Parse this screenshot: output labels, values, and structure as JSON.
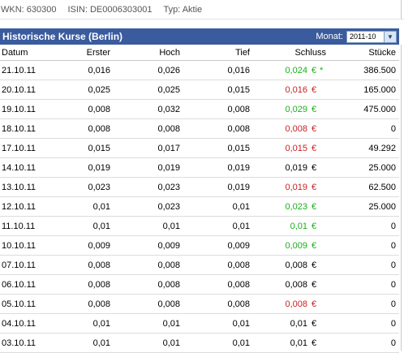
{
  "meta": {
    "wkn": "WKN: 630300",
    "isin": "ISIN: DE0006303001",
    "typ": "Typ: Aktie"
  },
  "header": {
    "title": "Historische Kurse (Berlin)",
    "month_label": "Monat:",
    "month_value": "2011-10",
    "dropdown_icon": "chevron-down-icon"
  },
  "colors": {
    "header_bg": "#3a5b9e",
    "up": "#19b019",
    "down": "#cc1f1f",
    "flat": "#000000"
  },
  "table": {
    "columns": [
      "Datum",
      "Erster",
      "Hoch",
      "Tief",
      "Schluss",
      "Stücke"
    ],
    "rows": [
      {
        "date": "21.10.11",
        "first": "0,016",
        "high": "0,026",
        "low": "0,016",
        "close": "0,024",
        "currency": "€",
        "trend": "up",
        "marker": "*",
        "volume": "386.500"
      },
      {
        "date": "20.10.11",
        "first": "0,025",
        "high": "0,025",
        "low": "0,015",
        "close": "0,016",
        "currency": "€",
        "trend": "down",
        "marker": "",
        "volume": "165.000"
      },
      {
        "date": "19.10.11",
        "first": "0,008",
        "high": "0,032",
        "low": "0,008",
        "close": "0,029",
        "currency": "€",
        "trend": "up",
        "marker": "",
        "volume": "475.000"
      },
      {
        "date": "18.10.11",
        "first": "0,008",
        "high": "0,008",
        "low": "0,008",
        "close": "0,008",
        "currency": "€",
        "trend": "down",
        "marker": "",
        "volume": "0"
      },
      {
        "date": "17.10.11",
        "first": "0,015",
        "high": "0,017",
        "low": "0,015",
        "close": "0,015",
        "currency": "€",
        "trend": "down",
        "marker": "",
        "volume": "49.292"
      },
      {
        "date": "14.10.11",
        "first": "0,019",
        "high": "0,019",
        "low": "0,019",
        "close": "0,019",
        "currency": "€",
        "trend": "flat",
        "marker": "",
        "volume": "25.000"
      },
      {
        "date": "13.10.11",
        "first": "0,023",
        "high": "0,023",
        "low": "0,019",
        "close": "0,019",
        "currency": "€",
        "trend": "down",
        "marker": "",
        "volume": "62.500"
      },
      {
        "date": "12.10.11",
        "first": "0,01",
        "high": "0,023",
        "low": "0,01",
        "close": "0,023",
        "currency": "€",
        "trend": "up",
        "marker": "",
        "volume": "25.000"
      },
      {
        "date": "11.10.11",
        "first": "0,01",
        "high": "0,01",
        "low": "0,01",
        "close": "0,01",
        "currency": "€",
        "trend": "up",
        "marker": "",
        "volume": "0"
      },
      {
        "date": "10.10.11",
        "first": "0,009",
        "high": "0,009",
        "low": "0,009",
        "close": "0,009",
        "currency": "€",
        "trend": "up",
        "marker": "",
        "volume": "0"
      },
      {
        "date": "07.10.11",
        "first": "0,008",
        "high": "0,008",
        "low": "0,008",
        "close": "0,008",
        "currency": "€",
        "trend": "flat",
        "marker": "",
        "volume": "0"
      },
      {
        "date": "06.10.11",
        "first": "0,008",
        "high": "0,008",
        "low": "0,008",
        "close": "0,008",
        "currency": "€",
        "trend": "flat",
        "marker": "",
        "volume": "0"
      },
      {
        "date": "05.10.11",
        "first": "0,008",
        "high": "0,008",
        "low": "0,008",
        "close": "0,008",
        "currency": "€",
        "trend": "down",
        "marker": "",
        "volume": "0"
      },
      {
        "date": "04.10.11",
        "first": "0,01",
        "high": "0,01",
        "low": "0,01",
        "close": "0,01",
        "currency": "€",
        "trend": "flat",
        "marker": "",
        "volume": "0"
      },
      {
        "date": "03.10.11",
        "first": "0,01",
        "high": "0,01",
        "low": "0,01",
        "close": "0,01",
        "currency": "€",
        "trend": "flat",
        "marker": "",
        "volume": "0"
      }
    ]
  }
}
